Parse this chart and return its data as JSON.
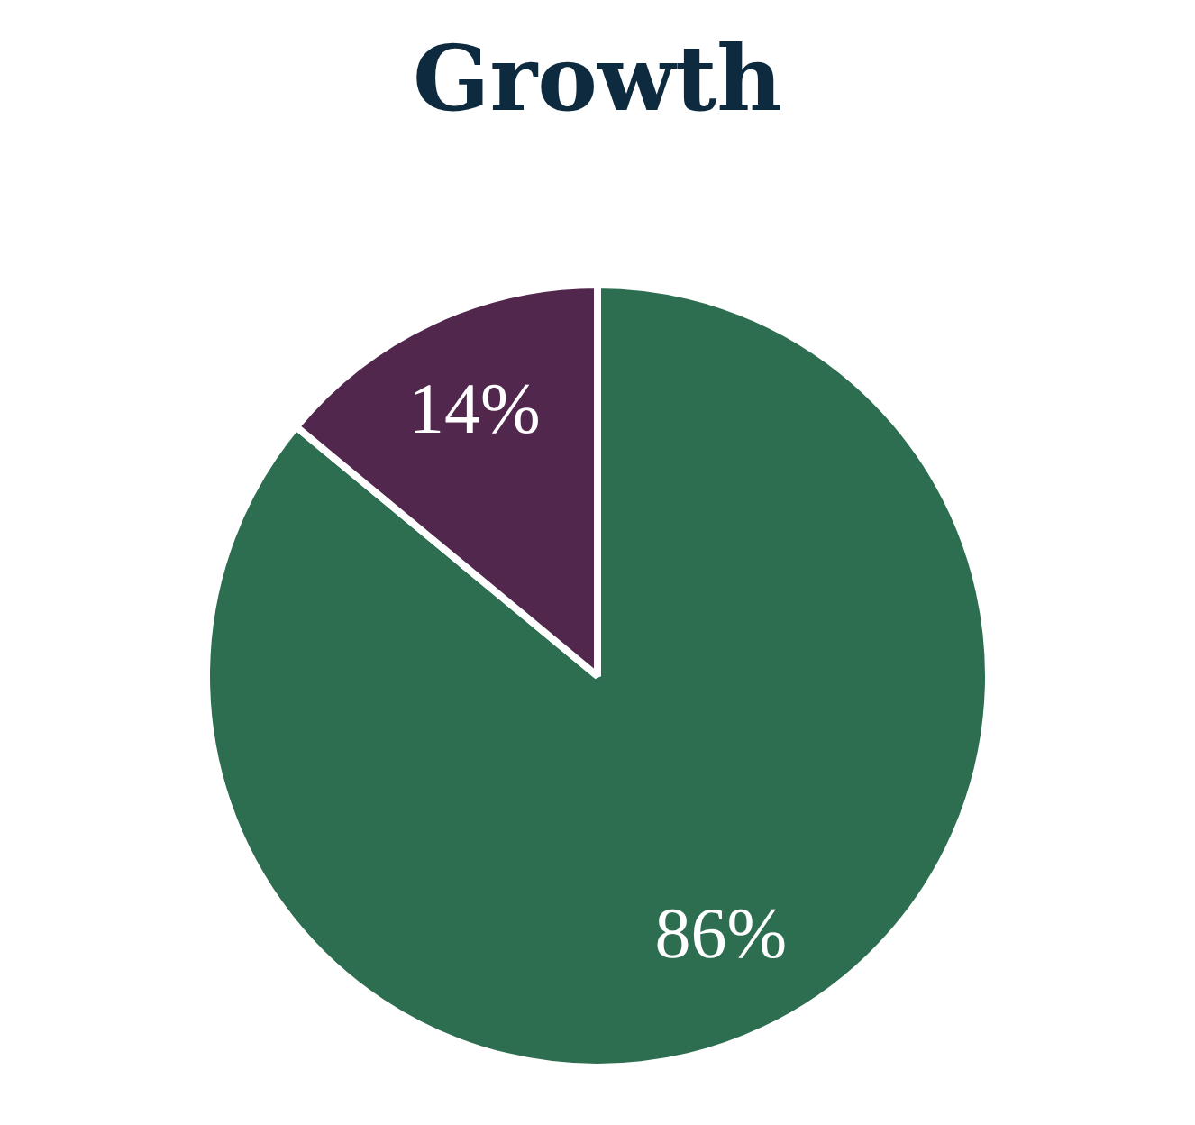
{
  "chart_data": {
    "type": "pie",
    "title": "Growth",
    "categories": [
      null,
      null
    ],
    "values": [
      86,
      14
    ],
    "colors": [
      "#2e6e50",
      "#52274d"
    ],
    "value_labels": [
      "86%",
      "14%"
    ]
  }
}
